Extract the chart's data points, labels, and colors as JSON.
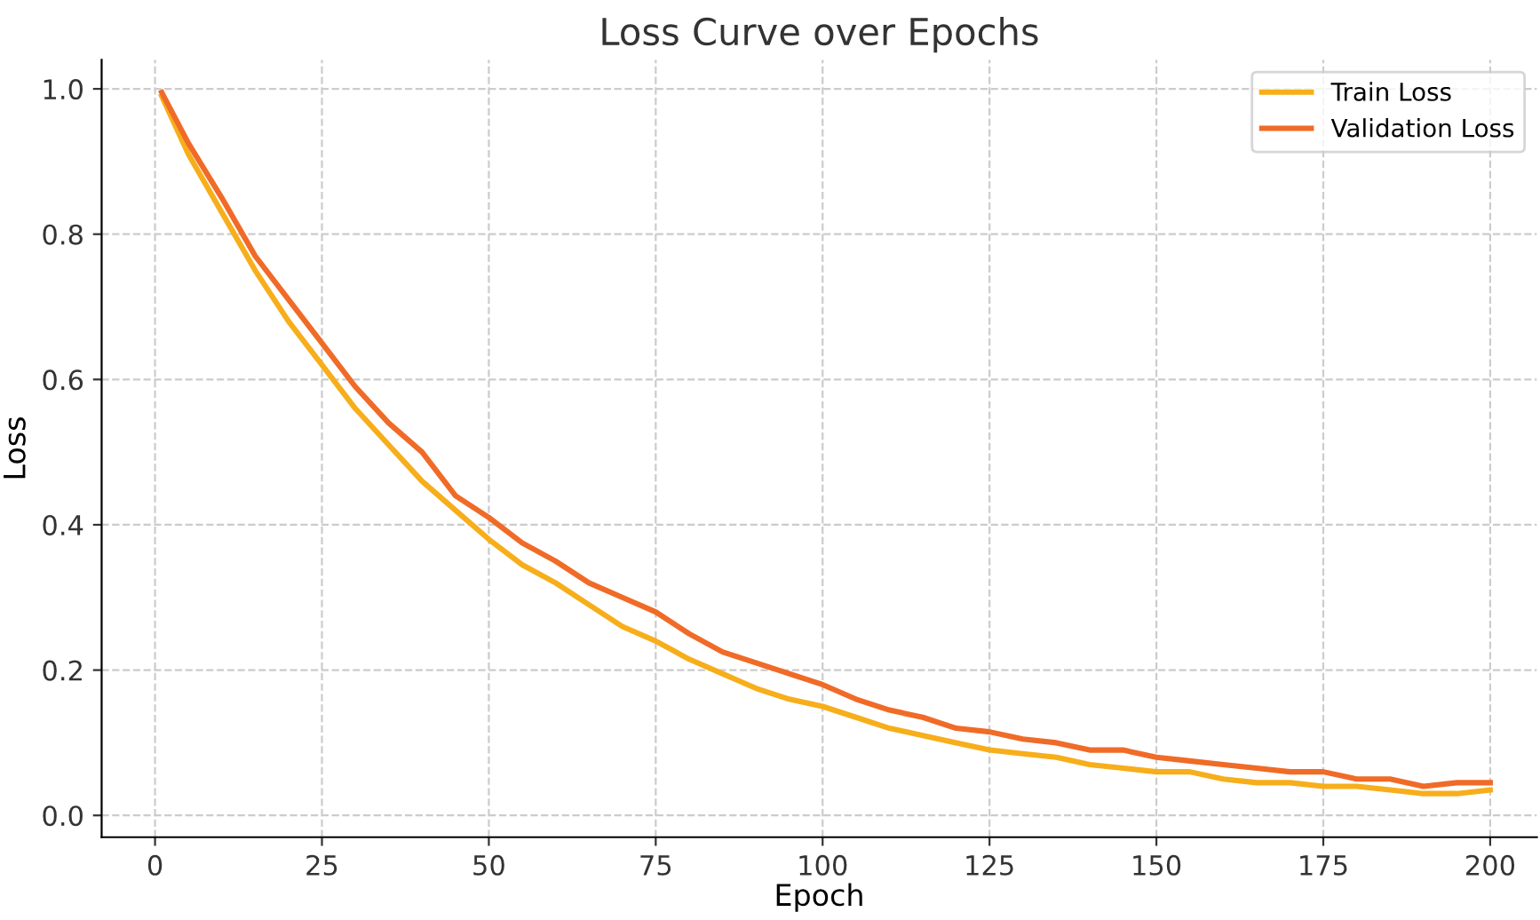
{
  "chart_data": {
    "type": "line",
    "title": "Loss Curve over Epochs",
    "xlabel": "Epoch",
    "ylabel": "Loss",
    "x": [
      1,
      5,
      10,
      15,
      20,
      25,
      30,
      35,
      40,
      45,
      50,
      55,
      60,
      65,
      70,
      75,
      80,
      85,
      90,
      95,
      100,
      105,
      110,
      115,
      120,
      125,
      130,
      135,
      140,
      145,
      150,
      155,
      160,
      165,
      170,
      175,
      180,
      185,
      190,
      195,
      200
    ],
    "series": [
      {
        "name": "Train Loss",
        "color": "#f7ae1b",
        "values": [
          0.99,
          0.91,
          0.83,
          0.75,
          0.68,
          0.62,
          0.56,
          0.51,
          0.46,
          0.42,
          0.38,
          0.345,
          0.32,
          0.29,
          0.26,
          0.24,
          0.215,
          0.195,
          0.175,
          0.16,
          0.15,
          0.135,
          0.12,
          0.11,
          0.1,
          0.09,
          0.085,
          0.08,
          0.07,
          0.065,
          0.06,
          0.06,
          0.05,
          0.045,
          0.045,
          0.04,
          0.04,
          0.035,
          0.03,
          0.03,
          0.035
        ]
      },
      {
        "name": "Validation Loss",
        "color": "#f06b27",
        "values": [
          0.995,
          0.925,
          0.85,
          0.77,
          0.71,
          0.65,
          0.59,
          0.54,
          0.5,
          0.44,
          0.41,
          0.375,
          0.35,
          0.32,
          0.3,
          0.28,
          0.25,
          0.225,
          0.21,
          0.195,
          0.18,
          0.16,
          0.145,
          0.135,
          0.12,
          0.115,
          0.105,
          0.1,
          0.09,
          0.09,
          0.08,
          0.075,
          0.07,
          0.065,
          0.06,
          0.06,
          0.05,
          0.05,
          0.04,
          0.045,
          0.045
        ]
      }
    ],
    "xlim": [
      -8,
      207
    ],
    "xticks": [
      0,
      25,
      50,
      75,
      100,
      125,
      150,
      175,
      200
    ],
    "ylim": [
      -0.03,
      1.04
    ],
    "yticks": [
      {
        "value": 0,
        "label": "0.0"
      },
      {
        "value": 0.2,
        "label": "0.2"
      },
      {
        "value": 0.4,
        "label": "0.4"
      },
      {
        "value": 0.6,
        "label": "0.6"
      },
      {
        "value": 0.8,
        "label": "0.8"
      },
      {
        "value": 1.0,
        "label": "1.0"
      }
    ],
    "grid": true,
    "legend": "top right",
    "marker": "none",
    "line_style": "solid"
  }
}
